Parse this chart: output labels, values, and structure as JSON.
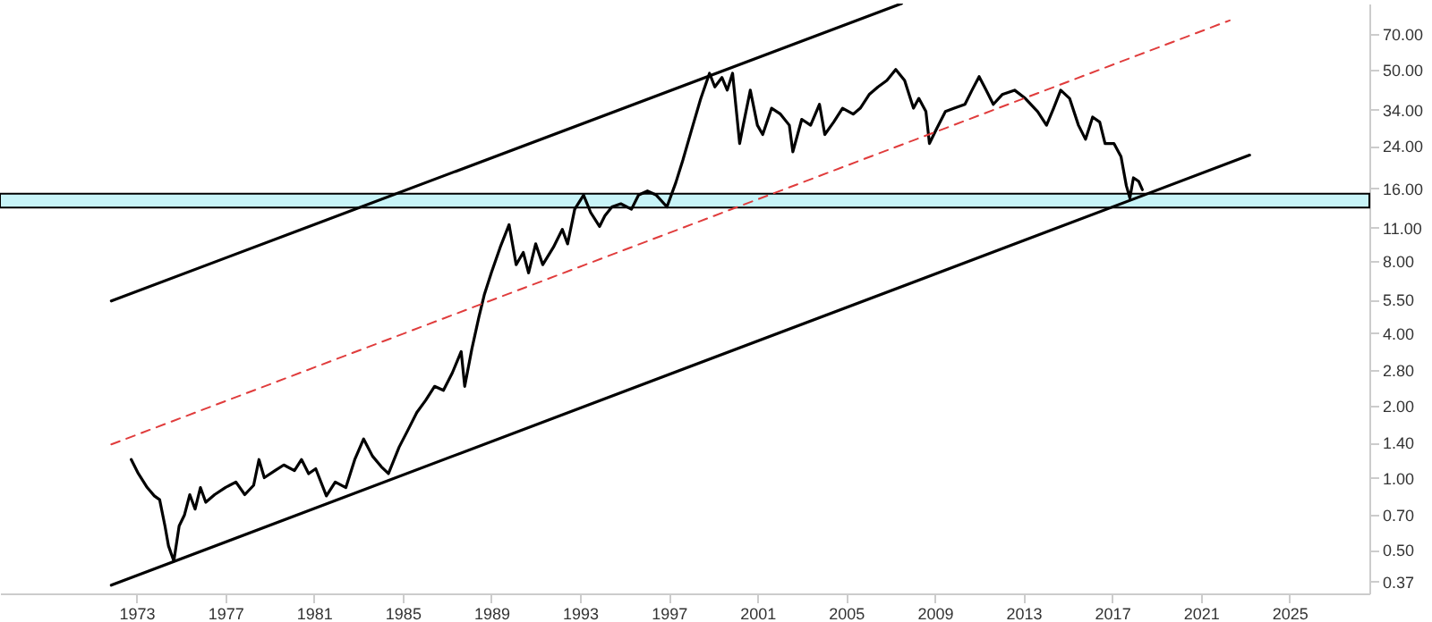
{
  "chart_data": {
    "type": "line",
    "log": "y",
    "xlim": [
      1966.84,
      2028.6
    ],
    "ylim": [
      0.33,
      94
    ],
    "xticks": [
      1973,
      1977,
      1981,
      1985,
      1989,
      1993,
      1997,
      2001,
      2005,
      2009,
      2013,
      2017,
      2021,
      2025
    ],
    "yticks": [
      {
        "value": 70,
        "label": "70.00"
      },
      {
        "value": 50,
        "label": "50.00"
      },
      {
        "value": 34,
        "label": "34.00"
      },
      {
        "value": 24,
        "label": "24.00"
      },
      {
        "value": 16,
        "label": "16.00"
      },
      {
        "value": 11,
        "label": "11.00"
      },
      {
        "value": 8,
        "label": "8.00"
      },
      {
        "value": 5.5,
        "label": "5.50"
      },
      {
        "value": 4,
        "label": "4.00"
      },
      {
        "value": 2.8,
        "label": "2.80"
      },
      {
        "value": 2,
        "label": "2.00"
      },
      {
        "value": 1.4,
        "label": "1.40"
      },
      {
        "value": 1,
        "label": "1.00"
      },
      {
        "value": 0.7,
        "label": "0.70"
      },
      {
        "value": 0.5,
        "label": "0.50"
      },
      {
        "value": 0.37,
        "label": "0.37"
      }
    ],
    "grid": false,
    "bands": [
      {
        "axis": "y",
        "from": 13.3,
        "to": 15.2,
        "color": "#c8f4f8"
      }
    ],
    "series": [
      {
        "color": "#000000",
        "x": [
          1972.76,
          1973.08,
          1973.48,
          1973.8,
          1974.04,
          1974.28,
          1974.44,
          1974.68,
          1974.92,
          1975.16,
          1975.4,
          1975.64,
          1975.88,
          1976.12,
          1976.52,
          1977.0,
          1977.48,
          1977.88,
          1978.28,
          1978.52,
          1978.76,
          1979.24,
          1979.64,
          1980.12,
          1980.44,
          1980.76,
          1981.08,
          1981.56,
          1981.96,
          1982.44,
          1982.84,
          1983.24,
          1983.64,
          1984.04,
          1984.36,
          1984.84,
          1985.24,
          1985.64,
          1986.04,
          1986.44,
          1986.84,
          1987.24,
          1987.64,
          1987.8,
          1988.12,
          1988.44,
          1988.68,
          1989.0,
          1989.4,
          1989.8,
          1990.12,
          1990.44,
          1990.68,
          1991.0,
          1991.32,
          1991.8,
          1992.2,
          1992.44,
          1992.76,
          1993.16,
          1993.48,
          1993.88,
          1994.12,
          1994.44,
          1994.84,
          1995.32,
          1995.64,
          1996.04,
          1996.44,
          1996.92,
          1997.32,
          1997.64,
          1998.04,
          1998.44,
          1998.84,
          1999.08,
          1999.4,
          1999.64,
          1999.88,
          2000.04,
          2000.2,
          2000.36,
          2000.68,
          2001.0,
          2001.24,
          2001.64,
          2002.04,
          2002.44,
          2002.6,
          2003.0,
          2003.4,
          2003.8,
          2004.04,
          2004.44,
          2004.84,
          2005.32,
          2005.64,
          2006.04,
          2006.44,
          2006.84,
          2007.24,
          2007.64,
          2008.04,
          2008.28,
          2008.6,
          2008.76,
          2009.08,
          2009.48,
          2009.88,
          2010.36,
          2010.68,
          2011.0,
          2011.32,
          2011.64,
          2012.04,
          2012.6,
          2013.08,
          2013.64,
          2014.04,
          2014.36,
          2014.68,
          2015.08,
          2015.48,
          2015.8,
          2016.12,
          2016.44,
          2016.68,
          2017.08,
          2017.4,
          2017.64,
          2017.8,
          2017.96,
          2018.2,
          2018.36
        ],
        "values": [
          1.19,
          1.04,
          0.91,
          0.84,
          0.81,
          0.63,
          0.52,
          0.45,
          0.63,
          0.7,
          0.85,
          0.74,
          0.91,
          0.79,
          0.85,
          0.91,
          0.96,
          0.85,
          0.93,
          1.19,
          1.0,
          1.07,
          1.13,
          1.07,
          1.19,
          1.04,
          1.09,
          0.84,
          0.96,
          0.91,
          1.19,
          1.45,
          1.23,
          1.11,
          1.04,
          1.34,
          1.58,
          1.87,
          2.1,
          2.4,
          2.31,
          2.73,
          3.35,
          2.4,
          3.43,
          4.67,
          5.76,
          7.12,
          9.1,
          11.3,
          7.7,
          8.66,
          7.12,
          9.4,
          7.7,
          9.1,
          10.8,
          9.4,
          13.1,
          15.0,
          12.7,
          11.1,
          12.3,
          13.4,
          13.8,
          13.1,
          15.0,
          15.6,
          15.0,
          13.4,
          16.9,
          21.0,
          28.2,
          37.7,
          48.2,
          42.3,
          46.3,
          41.0,
          48.2,
          34.5,
          24.6,
          29.3,
          41.0,
          29.3,
          26.8,
          34.5,
          32.6,
          29.3,
          22.7,
          31.0,
          29.3,
          35.8,
          26.8,
          30.2,
          34.5,
          32.6,
          34.5,
          39.3,
          42.3,
          45.0,
          50.0,
          45.0,
          34.5,
          37.9,
          33.4,
          24.6,
          28.3,
          33.4,
          34.5,
          35.8,
          41.0,
          46.7,
          41.0,
          35.8,
          39.3,
          41.0,
          37.9,
          33.4,
          29.3,
          34.5,
          41.0,
          37.9,
          29.3,
          25.6,
          31.7,
          30.2,
          24.6,
          24.6,
          21.7,
          16.4,
          14.6,
          17.7,
          17.1,
          15.8
        ]
      },
      {
        "color": "#000000",
        "x": [
          1971.86,
          2007.5
        ],
        "values": [
          5.44,
          94
        ]
      },
      {
        "color": "#000000",
        "x": [
          1971.86,
          2023.2
        ],
        "values": [
          0.357,
          22.0
        ]
      },
      {
        "color": "#e03c3c",
        "line_style": "dashed",
        "x": [
          1971.86,
          2022.3
        ],
        "values": [
          1.376,
          80.0
        ]
      }
    ]
  }
}
